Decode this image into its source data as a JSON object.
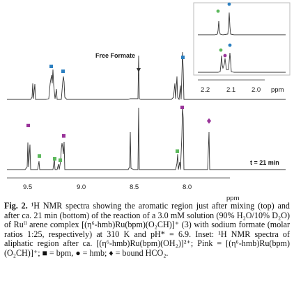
{
  "figure": {
    "free_formate_label": "Free Formate",
    "time_label": "t = 21 min",
    "x_ticks": [
      "9.5",
      "9.0",
      "8.5",
      "8.0"
    ],
    "x_unit": "ppm",
    "inset_ticks": [
      "2.2",
      "2.1",
      "2.0"
    ],
    "inset_unit": "ppm",
    "colors": {
      "bpm": "#2b7fc1",
      "hmb": "#5cb85c",
      "bound_hco2": "#993399",
      "spectrum": "#333333"
    },
    "marker_legend": {
      "square": "bpm",
      "circle": "hmb",
      "diamond": "bound HCO2"
    }
  },
  "caption": {
    "fig_label": "Fig. 2.",
    "text": "¹H NMR spectra showing the aromatic region just after mixing (top) and after ca. 21 min (bottom) of the reaction of a 3.0 mM solution (90% H₂O/10% D₂O) of Ruᴵᴵ arene complex [(η⁶-hmb)Ru(bpm)(O₂CH)]⁺ (3) with sodium formate (molar ratios 1:25, respectively) at 310 K and pH* = 6.9. Inset: ¹H NMR spectra of aliphatic region after ca. [(η⁶-hmb)Ru(bpm)(OH₂)]²⁺; Pink = [(η⁶-hmb)Ru(bpm)(O₂CH)]⁺; ■ = bpm, ● = hmb; ♦ = bound HCO₂."
  }
}
